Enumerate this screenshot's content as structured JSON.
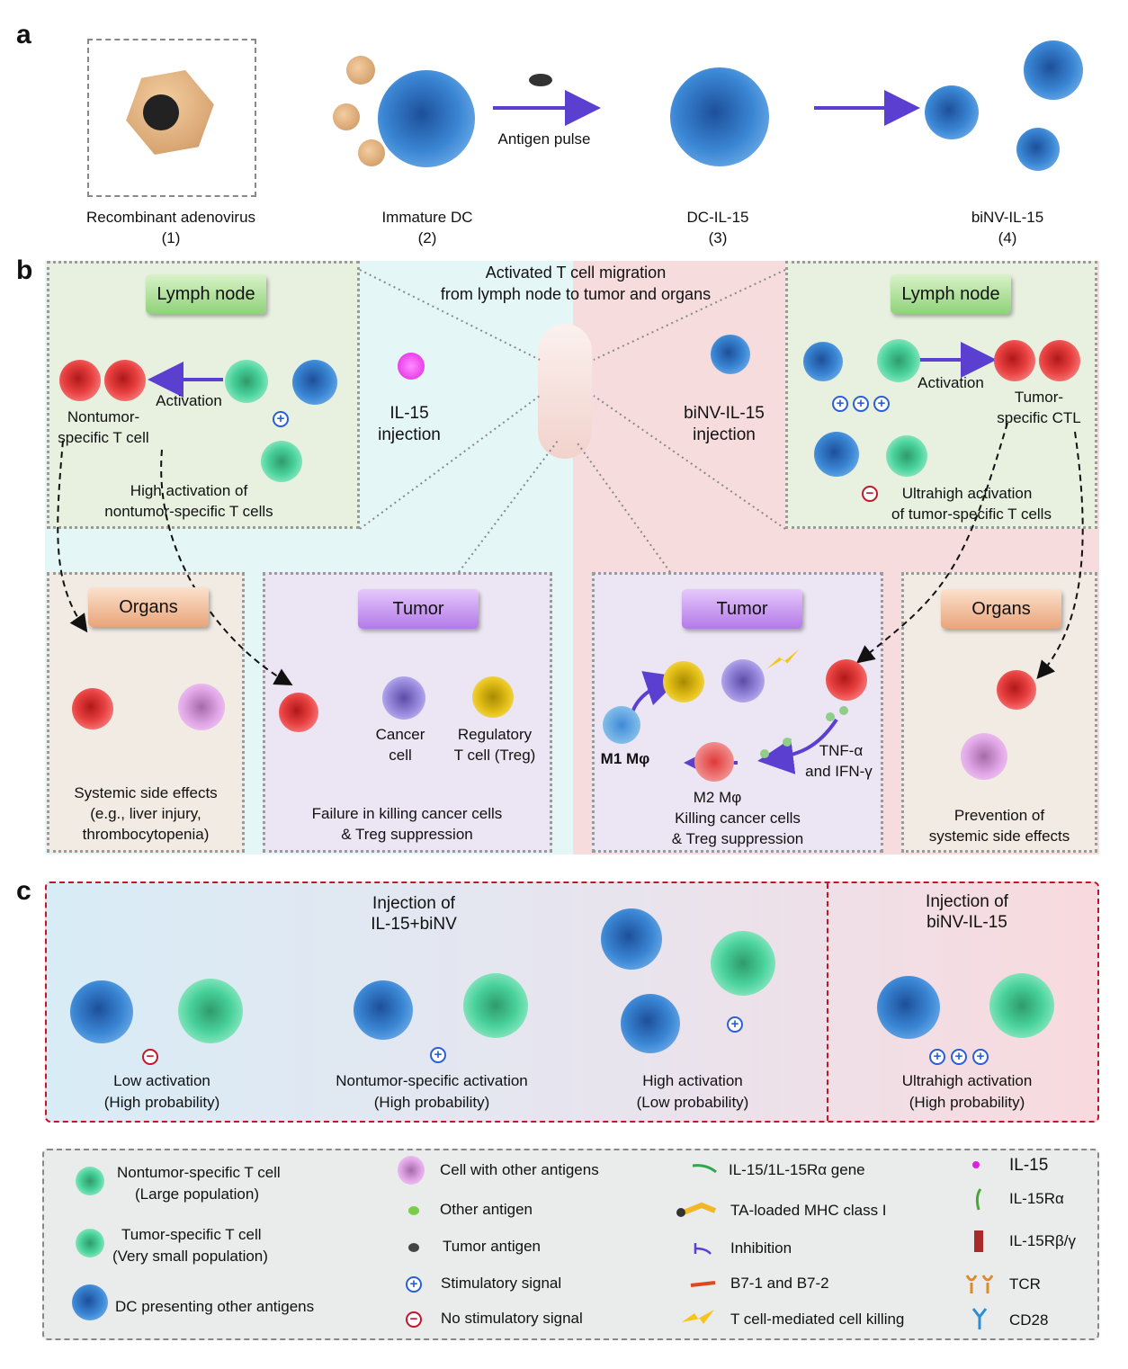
{
  "panel_labels": {
    "a": "a",
    "b": "b",
    "c": "c"
  },
  "panel_a": {
    "steps": [
      {
        "name": "Recombinant adenovirus",
        "num": "(1)"
      },
      {
        "name": "Immature DC",
        "num": "(2)"
      },
      {
        "name": "DC-IL-15",
        "num": "(3)"
      },
      {
        "name": "biNV-IL-15",
        "num": "(4)"
      }
    ],
    "antigen_pulse": "Antigen pulse"
  },
  "panel_b": {
    "center_title_1": "Activated T cell migration",
    "center_title_2": "from lymph node to tumor and organs",
    "left_injection_1": "IL-15",
    "left_injection_2": "injection",
    "right_injection_1": "biNV-IL-15",
    "right_injection_2": "injection",
    "left_lymph": {
      "tag": "Lymph node",
      "activation": "Activation",
      "cell_1": "Nontumor-",
      "cell_2": "specific T cell",
      "caption_1": "High activation of",
      "caption_2": "nontumor-specific T cells"
    },
    "right_lymph": {
      "tag": "Lymph node",
      "activation": "Activation",
      "cell_1": "Tumor-",
      "cell_2": "specific CTL",
      "caption_1": "Ultrahigh activation",
      "caption_2": "of tumor-specific T cells"
    },
    "left_organs": {
      "tag": "Organs",
      "caption_1": "Systemic side effects",
      "caption_2": "(e.g., liver injury,",
      "caption_3": "thrombocytopenia)"
    },
    "left_tumor": {
      "tag": "Tumor",
      "cancer_1": "Cancer",
      "cancer_2": "cell",
      "treg_1": "Regulatory",
      "treg_2": "T cell (Treg)",
      "caption_1": "Failure in killing cancer cells",
      "caption_2": "& Treg suppression"
    },
    "right_tumor": {
      "tag": "Tumor",
      "m1": "M1 Mφ",
      "m2": "M2 Mφ",
      "cytokines_1": "TNF-α",
      "cytokines_2": "and IFN-γ",
      "caption_1": "Killing cancer cells",
      "caption_2": "& Treg suppression"
    },
    "right_organs": {
      "tag": "Organs",
      "caption_1": "Prevention of",
      "caption_2": "systemic side effects"
    }
  },
  "panel_c": {
    "left_title_1": "Injection of",
    "left_title_2": "IL-15+biNV",
    "right_title_1": "Injection of",
    "right_title_2": "biNV-IL-15",
    "scenarios": [
      {
        "line1": "Low activation",
        "line2": "(High probability)",
        "signal": "minus"
      },
      {
        "line1": "Nontumor-specific activation",
        "line2": "(High probability)",
        "signal": "plus"
      },
      {
        "line1": "High activation",
        "line2": "(Low probability)",
        "signal": "plus"
      },
      {
        "line1": "Ultrahigh activation",
        "line2": "(High probability)",
        "signal": "plus-plus-plus"
      }
    ]
  },
  "legend": {
    "nontumor_1": "Nontumor-specific T cell",
    "nontumor_2": "(Large population)",
    "tumor_1": "Tumor-specific T cell",
    "tumor_2": "(Very small population)",
    "dc": "DC presenting other antigens",
    "cell_other": "Cell with other antigens",
    "other_antigen": "Other antigen",
    "tumor_antigen": "Tumor antigen",
    "stim": "Stimulatory signal",
    "nostim": "No stimulatory signal",
    "gene": "IL-15/1L-15Rα gene",
    "mhc": "TA-loaded MHC class I",
    "inhibition": "Inhibition",
    "b7": "B7-1 and B7-2",
    "killing": "T cell-mediated cell killing",
    "il15": "IL-15",
    "il15ra": "IL-15Rα",
    "il15rbg": "IL-15Rβ/γ",
    "tcr": "TCR",
    "cd28": "CD28",
    "plus_symbol": "+",
    "minus_symbol": "−"
  },
  "colors": {
    "plus": "#2a5fd6",
    "minus": "#c0182a",
    "arrow": "#5b3fd0",
    "left_bg": "#e5f6f6",
    "right_bg": "#f6dcdc"
  }
}
